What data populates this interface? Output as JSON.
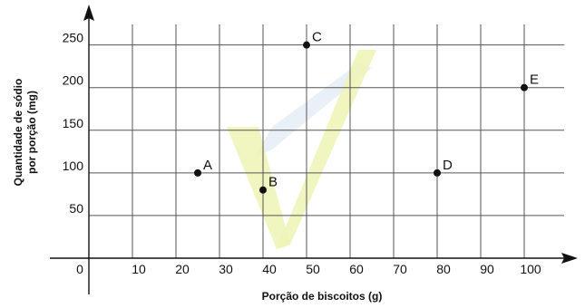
{
  "chart_data": {
    "type": "scatter",
    "title": "",
    "xlabel": "Porção de biscoitos (g)",
    "ylabel_line1": "Quantidade de sódio",
    "ylabel_line2": "por porção (mg)",
    "xlim": [
      0,
      110
    ],
    "ylim": [
      0,
      270
    ],
    "x_origin_label": "0",
    "x_ticks": [
      10,
      20,
      30,
      40,
      50,
      60,
      70,
      80,
      90,
      100
    ],
    "y_ticks": [
      50,
      100,
      150,
      200,
      250
    ],
    "grid": true,
    "points": [
      {
        "label": "A",
        "x": 25,
        "y": 100
      },
      {
        "label": "B",
        "x": 40,
        "y": 80
      },
      {
        "label": "C",
        "x": 50,
        "y": 250
      },
      {
        "label": "D",
        "x": 80,
        "y": 100
      },
      {
        "label": "E",
        "x": 100,
        "y": 200
      }
    ]
  }
}
